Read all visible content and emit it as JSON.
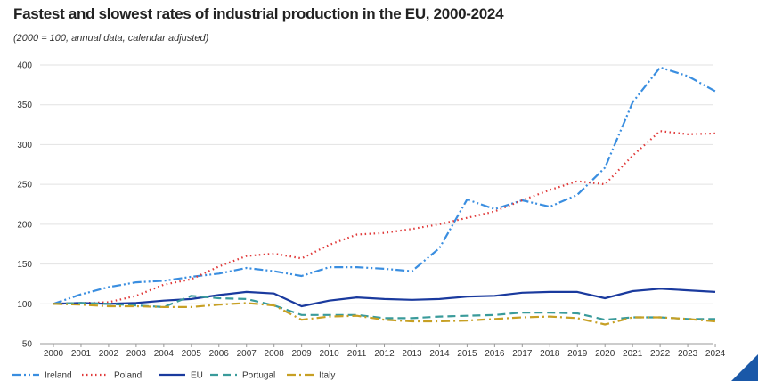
{
  "chart_data": {
    "type": "line",
    "title": "Fastest and slowest rates of industrial production in the EU, 2000-2024",
    "subtitle": "(2000 = 100, annual data, calendar adjusted)",
    "xlabel": "",
    "ylabel": "",
    "ylim": [
      50,
      400
    ],
    "yticks": [
      "50",
      "100",
      "150",
      "200",
      "250",
      "300",
      "350",
      "400"
    ],
    "grid": true,
    "legend_position": "bottom-left",
    "categories": [
      "2000",
      "2001",
      "2002",
      "2003",
      "2004",
      "2005",
      "2006",
      "2007",
      "2008",
      "2009",
      "2010",
      "2011",
      "2012",
      "2013",
      "2014",
      "2015",
      "2016",
      "2017",
      "2018",
      "2019",
      "2020",
      "2021",
      "2022",
      "2023",
      "2024"
    ],
    "series": [
      {
        "name": "Ireland",
        "color": "#3a8ee0",
        "dash": "dashdotdot",
        "values": [
          100,
          112,
          121,
          127,
          129,
          134,
          138,
          145,
          141,
          135,
          146,
          146,
          144,
          141,
          170,
          231,
          219,
          230,
          222,
          237,
          271,
          353,
          397,
          386,
          367
        ]
      },
      {
        "name": "Poland",
        "color": "#e03a3a",
        "dash": "dotted",
        "values": [
          100,
          101,
          102,
          110,
          124,
          131,
          147,
          160,
          163,
          157,
          174,
          187,
          189,
          194,
          200,
          208,
          216,
          230,
          243,
          254,
          250,
          286,
          317,
          313,
          314
        ]
      },
      {
        "name": "EU",
        "color": "#1a3a9e",
        "dash": "solid",
        "values": [
          100,
          101,
          100,
          101,
          104,
          106,
          111,
          115,
          113,
          97,
          104,
          108,
          106,
          105,
          106,
          109,
          110,
          114,
          115,
          115,
          107,
          116,
          119,
          117,
          115
        ]
      },
      {
        "name": "Portugal",
        "color": "#3a9b9b",
        "dash": "dashed",
        "values": [
          100,
          101,
          100,
          98,
          96,
          110,
          107,
          106,
          98,
          86,
          86,
          86,
          82,
          82,
          84,
          85,
          86,
          89,
          89,
          88,
          80,
          83,
          83,
          81,
          81
        ]
      },
      {
        "name": "Italy",
        "color": "#c7a024",
        "dash": "dashdot",
        "values": [
          100,
          99,
          97,
          97,
          96,
          96,
          99,
          101,
          98,
          80,
          84,
          85,
          80,
          78,
          78,
          79,
          81,
          83,
          84,
          82,
          74,
          83,
          83,
          81,
          78
        ]
      }
    ]
  }
}
